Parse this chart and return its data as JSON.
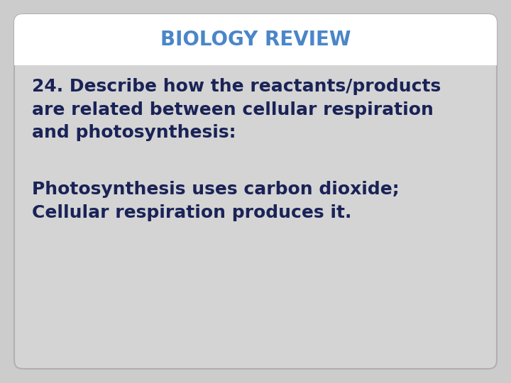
{
  "title": "BIOLOGY REVIEW",
  "title_color": "#4a86c8",
  "title_fontsize": 20,
  "title_fontweight": "bold",
  "question_text": "24. Describe how the reactants/products\nare related between cellular respiration\nand photosynthesis:",
  "answer_text": "Photosynthesis uses carbon dioxide;\nCellular respiration produces it.",
  "body_text_color": "#1a2357",
  "body_fontsize": 18,
  "background_color": "#cccccc",
  "header_bg_color": "#ffffff",
  "slide_bg_color": "#d4d4d4",
  "border_color": "#b0b0b0"
}
